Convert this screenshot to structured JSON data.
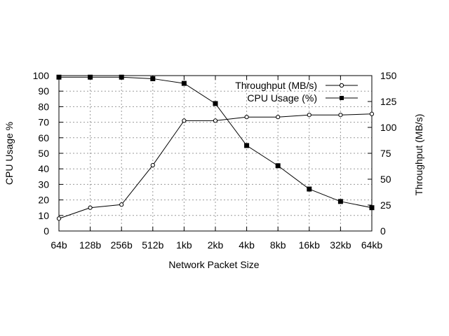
{
  "chart_data": {
    "type": "line",
    "categories": [
      "64b",
      "128b",
      "256b",
      "512b",
      "1kb",
      "2kb",
      "4kb",
      "8kb",
      "16kb",
      "32kb",
      "64kb"
    ],
    "xlabel": "Network Packet Size",
    "ylabel": "CPU Usage %",
    "y2label": "Throughput (MB/s)",
    "ylim": [
      0,
      100
    ],
    "y2lim": [
      0,
      150
    ],
    "yticks": [
      0,
      10,
      20,
      30,
      40,
      50,
      60,
      70,
      80,
      90,
      100
    ],
    "y2ticks": [
      0,
      25,
      50,
      75,
      100,
      125,
      150
    ],
    "grid": true,
    "legend_position": "top-right",
    "series": [
      {
        "name": "Throughput (MB/s)",
        "axis": "right",
        "marker": "open-circle",
        "values": [
          12,
          22.5,
          25.5,
          63.5,
          106.5,
          106.5,
          110,
          110,
          112,
          112,
          113
        ]
      },
      {
        "name": "CPU Usage (%)",
        "axis": "left",
        "marker": "filled-square",
        "values": [
          99,
          99,
          99,
          98,
          95,
          82,
          55,
          42,
          27,
          19,
          15
        ]
      }
    ]
  }
}
